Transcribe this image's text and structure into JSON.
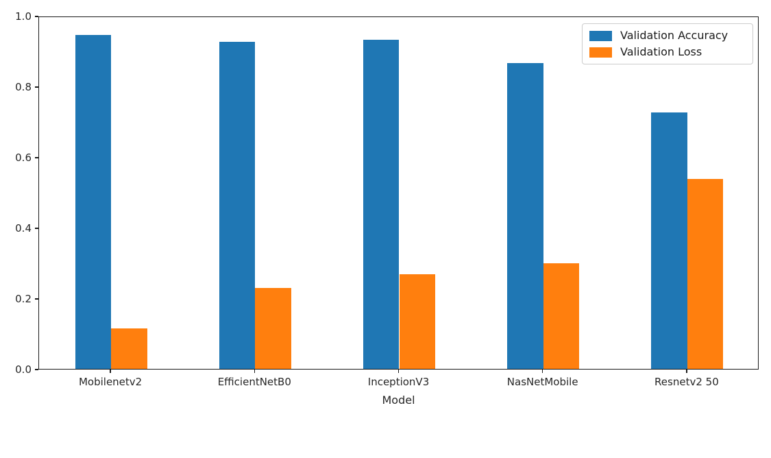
{
  "chart_data": {
    "type": "bar",
    "title": "",
    "xlabel": "Model",
    "ylabel": "",
    "categories": [
      "Mobilenetv2",
      "EfficientNetB0",
      "InceptionV3",
      "NasNetMobile",
      "Resnetv2 50"
    ],
    "series": [
      {
        "name": "Validation Accuracy",
        "color": "#1f77b4",
        "values": [
          0.95,
          0.93,
          0.935,
          0.87,
          0.73
        ]
      },
      {
        "name": "Validation Loss",
        "color": "#ff7f0e",
        "values": [
          0.115,
          0.23,
          0.27,
          0.3,
          0.54
        ]
      }
    ],
    "ylim": [
      0.0,
      1.0
    ],
    "yticks": [
      "0.0",
      "0.2",
      "0.4",
      "0.6",
      "0.8",
      "1.0"
    ],
    "grid": false,
    "legend_position": "upper right",
    "bar_width_fraction": 0.25
  }
}
